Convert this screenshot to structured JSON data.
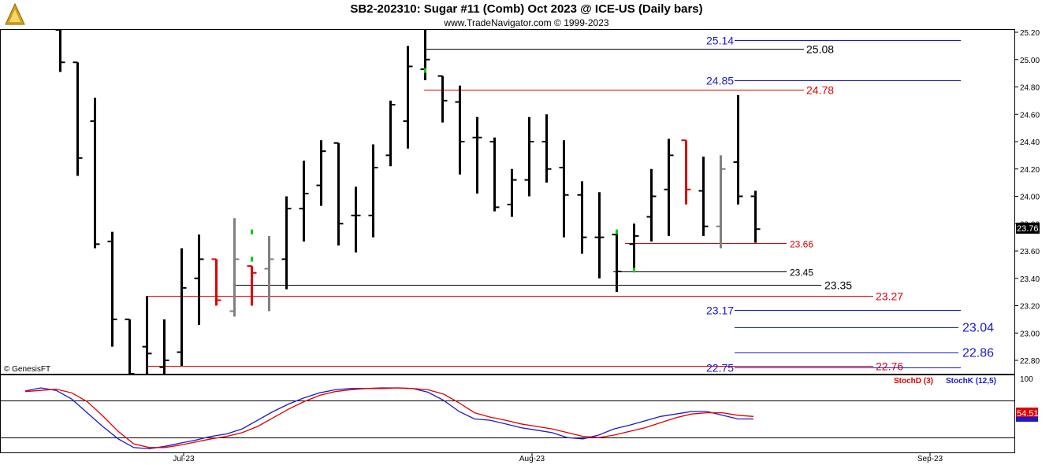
{
  "header": {
    "title": "SB2-202310:  Sugar #11 (Comb) Oct 2023 @ ICE-US  (Daily bars)",
    "subtitle": "www.TradeNavigator.com © 1999-2023"
  },
  "watermark": "© GenesisFT",
  "colors": {
    "bar": "#000000",
    "bar_red": "#e00000",
    "bar_gray": "#808080",
    "bar_green": "#00cc00",
    "level_black": "#000000",
    "level_red": "#e00000",
    "level_blue": "#1a1acc",
    "stoch_k": "#1a1acc",
    "stoch_d": "#e00000"
  },
  "chart_data": [
    {
      "type": "ohlc",
      "y_axis": {
        "min": 22.7,
        "max": 25.25,
        "ticks": [
          "25.20",
          "25.00",
          "24.80",
          "24.60",
          "24.40",
          "24.20",
          "24.00",
          "23.80",
          "23.60",
          "23.40",
          "23.20",
          "23.00",
          "22.80"
        ]
      },
      "x_axis": {
        "labels": [
          "Jul-23",
          "Aug-23",
          "Sep-23"
        ]
      },
      "last_price": "23.76",
      "bars": [
        {
          "o": 25.3,
          "h": 25.3,
          "l": 24.91,
          "c": 24.98,
          "col": "bar"
        },
        {
          "o": 24.98,
          "h": 24.98,
          "l": 24.15,
          "c": 24.28,
          "col": "bar"
        },
        {
          "o": 24.55,
          "h": 24.72,
          "l": 23.62,
          "c": 23.65,
          "col": "bar"
        },
        {
          "o": 23.67,
          "h": 23.74,
          "l": 22.9,
          "c": 23.1,
          "col": "bar"
        },
        {
          "o": 23.1,
          "h": 23.1,
          "l": 22.6,
          "c": 22.7,
          "col": "bar"
        },
        {
          "o": 22.9,
          "h": 23.27,
          "l": 22.55,
          "c": 22.85,
          "col": "bar"
        },
        {
          "o": 22.75,
          "h": 23.1,
          "l": 22.7,
          "c": 22.8,
          "col": "bar"
        },
        {
          "o": 22.86,
          "h": 23.62,
          "l": 22.76,
          "c": 23.33,
          "col": "bar"
        },
        {
          "o": 23.4,
          "h": 23.72,
          "l": 23.06,
          "c": 23.54,
          "col": "bar"
        },
        {
          "o": 23.54,
          "h": 23.54,
          "l": 23.2,
          "c": 23.24,
          "col": "bar_red"
        },
        {
          "o": 23.16,
          "h": 23.84,
          "l": 23.12,
          "c": 23.54,
          "col": "bar_gray"
        },
        {
          "o": 23.49,
          "h": 23.49,
          "l": 23.2,
          "c": 23.44,
          "col": "bar_red"
        },
        {
          "o": 23.47,
          "h": 23.71,
          "l": 23.16,
          "c": 23.54,
          "col": "bar_gray"
        },
        {
          "o": 23.54,
          "h": 24.0,
          "l": 23.32,
          "c": 23.91,
          "col": "bar"
        },
        {
          "o": 23.91,
          "h": 24.26,
          "l": 23.67,
          "c": 24.02,
          "col": "bar"
        },
        {
          "o": 24.08,
          "h": 24.41,
          "l": 23.93,
          "c": 24.33,
          "col": "bar"
        },
        {
          "o": 24.39,
          "h": 24.39,
          "l": 23.64,
          "c": 23.8,
          "col": "bar"
        },
        {
          "o": 23.86,
          "h": 24.07,
          "l": 23.59,
          "c": 23.86,
          "col": "bar"
        },
        {
          "o": 23.86,
          "h": 24.38,
          "l": 23.7,
          "c": 24.21,
          "col": "bar"
        },
        {
          "o": 24.3,
          "h": 24.7,
          "l": 24.22,
          "c": 24.67,
          "col": "bar"
        },
        {
          "o": 24.55,
          "h": 25.1,
          "l": 24.35,
          "c": 24.95,
          "col": "bar"
        },
        {
          "o": 24.93,
          "h": 25.22,
          "l": 24.85,
          "c": 25.0,
          "col": "bar"
        },
        {
          "o": 24.88,
          "h": 24.88,
          "l": 24.54,
          "c": 24.7,
          "col": "bar"
        },
        {
          "o": 24.69,
          "h": 24.81,
          "l": 24.16,
          "c": 24.4,
          "col": "bar"
        },
        {
          "o": 24.43,
          "h": 24.58,
          "l": 24.02,
          "c": 24.43,
          "col": "bar"
        },
        {
          "o": 24.4,
          "h": 24.43,
          "l": 23.89,
          "c": 23.92,
          "col": "bar"
        },
        {
          "o": 23.94,
          "h": 24.2,
          "l": 23.85,
          "c": 24.12,
          "col": "bar"
        },
        {
          "o": 24.12,
          "h": 24.58,
          "l": 24.0,
          "c": 24.4,
          "col": "bar"
        },
        {
          "o": 24.4,
          "h": 24.6,
          "l": 24.1,
          "c": 24.2,
          "col": "bar"
        },
        {
          "o": 24.21,
          "h": 24.41,
          "l": 23.7,
          "c": 24.01,
          "col": "bar"
        },
        {
          "o": 24.01,
          "h": 24.11,
          "l": 23.58,
          "c": 23.7,
          "col": "bar"
        },
        {
          "o": 23.7,
          "h": 24.03,
          "l": 23.4,
          "c": 23.7,
          "col": "bar"
        },
        {
          "o": 23.72,
          "h": 23.74,
          "l": 23.3,
          "c": 23.45,
          "col": "bar"
        },
        {
          "o": 23.65,
          "h": 23.8,
          "l": 23.46,
          "c": 23.71,
          "col": "bar"
        },
        {
          "o": 23.85,
          "h": 24.2,
          "l": 23.67,
          "c": 24.0,
          "col": "bar"
        },
        {
          "o": 24.05,
          "h": 24.42,
          "l": 23.71,
          "c": 24.3,
          "col": "bar"
        },
        {
          "o": 24.41,
          "h": 24.41,
          "l": 23.94,
          "c": 24.05,
          "col": "bar_red"
        },
        {
          "o": 24.04,
          "h": 24.29,
          "l": 23.71,
          "c": 23.78,
          "col": "bar"
        },
        {
          "o": 23.78,
          "h": 24.3,
          "l": 23.62,
          "c": 24.2,
          "col": "bar_gray"
        },
        {
          "o": 24.25,
          "h": 24.74,
          "l": 23.94,
          "c": 24.0,
          "col": "bar"
        },
        {
          "o": 24.0,
          "h": 24.04,
          "l": 23.66,
          "c": 23.76,
          "col": "bar"
        }
      ],
      "green_marks": [
        23.74,
        23.54,
        24.92,
        23.74,
        23.46
      ],
      "levels": [
        {
          "price": "25.14",
          "color": "level_blue",
          "labelPos": "left"
        },
        {
          "price": "25.08",
          "color": "level_black",
          "labelPos": "right"
        },
        {
          "price": "24.85",
          "color": "level_blue",
          "labelPos": "left"
        },
        {
          "price": "24.78",
          "color": "level_red",
          "labelPos": "right"
        },
        {
          "price": "23.66",
          "color": "level_red",
          "labelPos": "end"
        },
        {
          "price": "23.45",
          "color": "level_black",
          "labelPos": "end"
        },
        {
          "price": "23.35",
          "color": "level_black",
          "labelPos": "end"
        },
        {
          "price": "23.27",
          "color": "level_red",
          "labelPos": "end"
        },
        {
          "price": "23.17",
          "color": "level_blue",
          "labelPos": "left"
        },
        {
          "price": "23.04",
          "color": "level_blue",
          "labelPos": "far"
        },
        {
          "price": "22.86",
          "color": "level_blue",
          "labelPos": "far"
        },
        {
          "price": "22.76",
          "color": "level_red",
          "labelPos": "end"
        },
        {
          "price": "22.75",
          "color": "level_blue",
          "labelPos": "left"
        }
      ]
    },
    {
      "type": "line",
      "y_axis": {
        "min": 0,
        "max": 100,
        "ticks": [
          "100"
        ],
        "grid_lines": [
          80,
          20
        ]
      },
      "legend": {
        "d": "StochD (3)",
        "k": "StochK (12,5)"
      },
      "last_value": "54.51",
      "series": [
        {
          "name": "StochK (12,5)",
          "color": "stoch_k",
          "values": [
            95,
            100,
            96,
            82,
            60,
            38,
            18,
            4,
            2,
            6,
            11,
            16,
            22,
            26,
            34,
            48,
            62,
            74,
            84,
            92,
            97,
            99,
            99,
            100,
            100,
            99,
            93,
            80,
            62,
            50,
            48,
            42,
            36,
            32,
            28,
            20,
            18,
            24,
            34,
            40,
            47,
            54,
            58,
            62,
            62,
            56,
            50,
            50
          ]
        },
        {
          "name": "StochD (3)",
          "color": "stoch_d",
          "values": [
            94,
            96,
            98,
            92,
            78,
            55,
            30,
            10,
            4,
            4,
            8,
            13,
            18,
            22,
            28,
            38,
            52,
            66,
            78,
            88,
            94,
            97,
            99,
            99,
            100,
            99,
            97,
            90,
            76,
            60,
            53,
            48,
            42,
            38,
            34,
            28,
            22,
            20,
            24,
            30,
            36,
            44,
            52,
            58,
            60,
            60,
            56,
            54
          ]
        }
      ]
    }
  ]
}
